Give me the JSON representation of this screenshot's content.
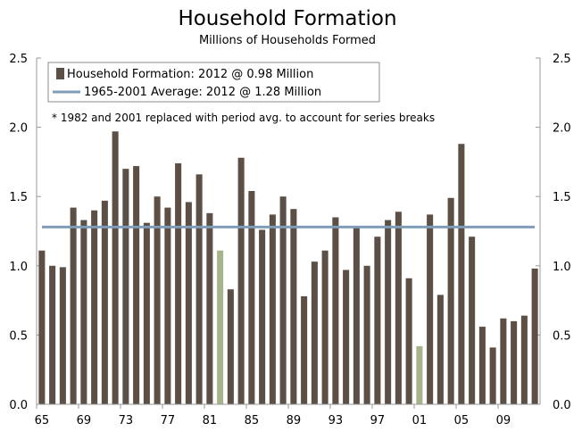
{
  "chart_data": {
    "type": "bar",
    "title": "Household Formation",
    "subtitle": "Millions of Households Formed",
    "years": [
      1965,
      1966,
      1967,
      1968,
      1969,
      1970,
      1971,
      1972,
      1973,
      1974,
      1975,
      1976,
      1977,
      1978,
      1979,
      1980,
      1981,
      1982,
      1983,
      1984,
      1985,
      1986,
      1987,
      1988,
      1989,
      1990,
      1991,
      1992,
      1993,
      1994,
      1995,
      1996,
      1997,
      1998,
      1999,
      2000,
      2001,
      2002,
      2003,
      2004,
      2005,
      2006,
      2007,
      2008,
      2009,
      2010,
      2011,
      2012
    ],
    "x_tick_labels": [
      "65",
      "69",
      "73",
      "77",
      "81",
      "85",
      "89",
      "93",
      "97",
      "01",
      "05",
      "09"
    ],
    "series": [
      {
        "name": "Household Formation: 2012 @ 0.98 Million",
        "color": "#5c4f45",
        "values": [
          1.11,
          1.0,
          0.99,
          1.42,
          1.33,
          1.4,
          1.47,
          1.97,
          1.7,
          1.72,
          1.31,
          1.5,
          1.42,
          1.74,
          1.46,
          1.66,
          1.38,
          1.11,
          0.83,
          1.78,
          1.54,
          1.26,
          1.37,
          1.5,
          1.41,
          0.78,
          1.03,
          1.11,
          1.35,
          0.97,
          1.28,
          1.0,
          1.21,
          1.33,
          1.39,
          0.91,
          0.42,
          1.37,
          0.79,
          1.49,
          1.88,
          1.21,
          0.56,
          0.41,
          0.62,
          0.6,
          0.64,
          0.98
        ]
      },
      {
        "name": "1965-2001 Average: 2012 @ 1.28 Million",
        "color": "#7f9db9",
        "value": 1.28
      }
    ],
    "replaced_years": [
      1982,
      2001
    ],
    "replaced_color": "#a7b48b",
    "note": "* 1982 and 2001 replaced with period avg. to account for series breaks",
    "ylim": [
      0,
      2.5
    ],
    "y_ticks": [
      "0.0",
      "0.5",
      "1.0",
      "1.5",
      "2.0",
      "2.5"
    ],
    "y_tick_values": [
      0,
      0.5,
      1.0,
      1.5,
      2.0,
      2.5
    ],
    "legend_position": "top-left",
    "grid": false
  }
}
